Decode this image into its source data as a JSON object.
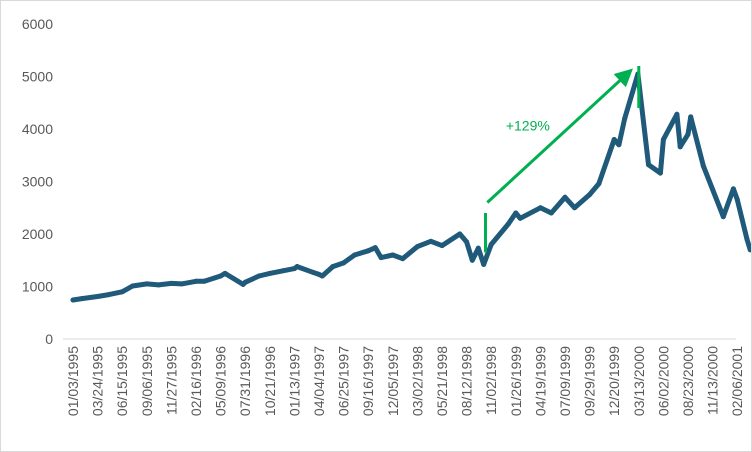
{
  "chart_data": {
    "type": "line",
    "title": "",
    "xlabel": "",
    "ylabel": "",
    "ylim": [
      0,
      6000
    ],
    "yticks": [
      "0",
      "1000",
      "2000",
      "3000",
      "4000",
      "5000",
      "6000"
    ],
    "grid": false,
    "legend": "none",
    "xtick_dates": [
      "1995-01-03",
      "1995-03-24",
      "1995-06-15",
      "1995-09-06",
      "1995-11-27",
      "1996-02-16",
      "1996-05-09",
      "1996-07-31",
      "1996-10-21",
      "1997-01-13",
      "1997-04-04",
      "1997-06-25",
      "1997-09-16",
      "1997-12-05",
      "1998-03-02",
      "1998-05-21",
      "1998-08-12",
      "1998-11-02",
      "1999-01-26",
      "1999-04-19",
      "1999-07-09",
      "1999-09-29",
      "1999-12-20",
      "2000-03-13",
      "2000-06-02",
      "2000-08-23",
      "2000-11-13",
      "2001-02-06"
    ],
    "xticks": [
      "01/03/1995",
      "03/24/1995",
      "06/15/1995",
      "09/06/1995",
      "11/27/1995",
      "02/16/1996",
      "05/09/1996",
      "07/31/1996",
      "10/21/1996",
      "01/13/1997",
      "04/04/1997",
      "06/25/1997",
      "09/16/1997",
      "12/05/1997",
      "03/02/1998",
      "05/21/1998",
      "08/12/1998",
      "11/02/1998",
      "01/26/1999",
      "04/19/1999",
      "07/09/1999",
      "09/29/1999",
      "12/20/1999",
      "03/13/2000",
      "06/02/2000",
      "08/23/2000",
      "11/13/2000",
      "02/06/2001"
    ],
    "series": [
      {
        "color": "#1f5a7a",
        "points": [
          [
            "1995-01-03",
            743
          ],
          [
            "1995-02-01",
            770
          ],
          [
            "1995-03-24",
            810
          ],
          [
            "1995-05-01",
            845
          ],
          [
            "1995-06-15",
            900
          ],
          [
            "1995-07-20",
            1010
          ],
          [
            "1995-09-06",
            1050
          ],
          [
            "1995-10-15",
            1030
          ],
          [
            "1995-11-27",
            1060
          ],
          [
            "1995-12-31",
            1050
          ],
          [
            "1996-02-16",
            1100
          ],
          [
            "1996-03-15",
            1100
          ],
          [
            "1996-05-09",
            1200
          ],
          [
            "1996-05-24",
            1250
          ],
          [
            "1996-07-24",
            1040
          ],
          [
            "1996-07-31",
            1080
          ],
          [
            "1996-09-15",
            1200
          ],
          [
            "1996-10-21",
            1250
          ],
          [
            "1996-12-05",
            1300
          ],
          [
            "1997-01-13",
            1340
          ],
          [
            "1997-01-22",
            1380
          ],
          [
            "1997-03-15",
            1270
          ],
          [
            "1997-04-04",
            1230
          ],
          [
            "1997-04-15",
            1200
          ],
          [
            "1997-05-20",
            1380
          ],
          [
            "1997-06-25",
            1450
          ],
          [
            "1997-08-01",
            1600
          ],
          [
            "1997-09-16",
            1680
          ],
          [
            "1997-10-09",
            1740
          ],
          [
            "1997-10-28",
            1550
          ],
          [
            "1997-12-05",
            1600
          ],
          [
            "1998-01-09",
            1530
          ],
          [
            "1998-03-02",
            1760
          ],
          [
            "1998-04-15",
            1860
          ],
          [
            "1998-05-21",
            1780
          ],
          [
            "1998-07-20",
            2000
          ],
          [
            "1998-08-12",
            1850
          ],
          [
            "1998-08-31",
            1500
          ],
          [
            "1998-09-20",
            1730
          ],
          [
            "1998-10-08",
            1420
          ],
          [
            "1998-11-02",
            1800
          ],
          [
            "1998-12-31",
            2190
          ],
          [
            "1999-01-26",
            2400
          ],
          [
            "1999-02-10",
            2300
          ],
          [
            "1999-04-19",
            2500
          ],
          [
            "1999-05-25",
            2400
          ],
          [
            "1999-07-09",
            2700
          ],
          [
            "1999-08-10",
            2500
          ],
          [
            "1999-09-29",
            2750
          ],
          [
            "1999-10-30",
            2960
          ],
          [
            "1999-12-20",
            3800
          ],
          [
            "2000-01-05",
            3700
          ],
          [
            "2000-01-25",
            4200
          ],
          [
            "2000-03-10",
            5048
          ],
          [
            "2000-04-14",
            3320
          ],
          [
            "2000-05-23",
            3160
          ],
          [
            "2000-06-02",
            3800
          ],
          [
            "2000-07-17",
            4280
          ],
          [
            "2000-07-28",
            3660
          ],
          [
            "2000-08-23",
            3900
          ],
          [
            "2000-09-01",
            4230
          ],
          [
            "2000-10-13",
            3300
          ],
          [
            "2000-11-13",
            2850
          ],
          [
            "2000-12-20",
            2330
          ],
          [
            "2001-01-24",
            2860
          ],
          [
            "2001-02-06",
            2660
          ],
          [
            "2001-03-12",
            1900
          ],
          [
            "2001-03-23",
            1700
          ]
        ]
      }
    ],
    "annotations": [
      {
        "text": "+129%",
        "color": "#00b050",
        "from_date": "1998-10-14",
        "to_date": "2000-03-13",
        "from_range": [
          1650,
          2400
        ],
        "to_range": [
          4400,
          5200
        ],
        "arrow_from": [
          "1998-10-20",
          2600
        ],
        "arrow_to": [
          "2000-02-20",
          5150
        ]
      }
    ]
  }
}
